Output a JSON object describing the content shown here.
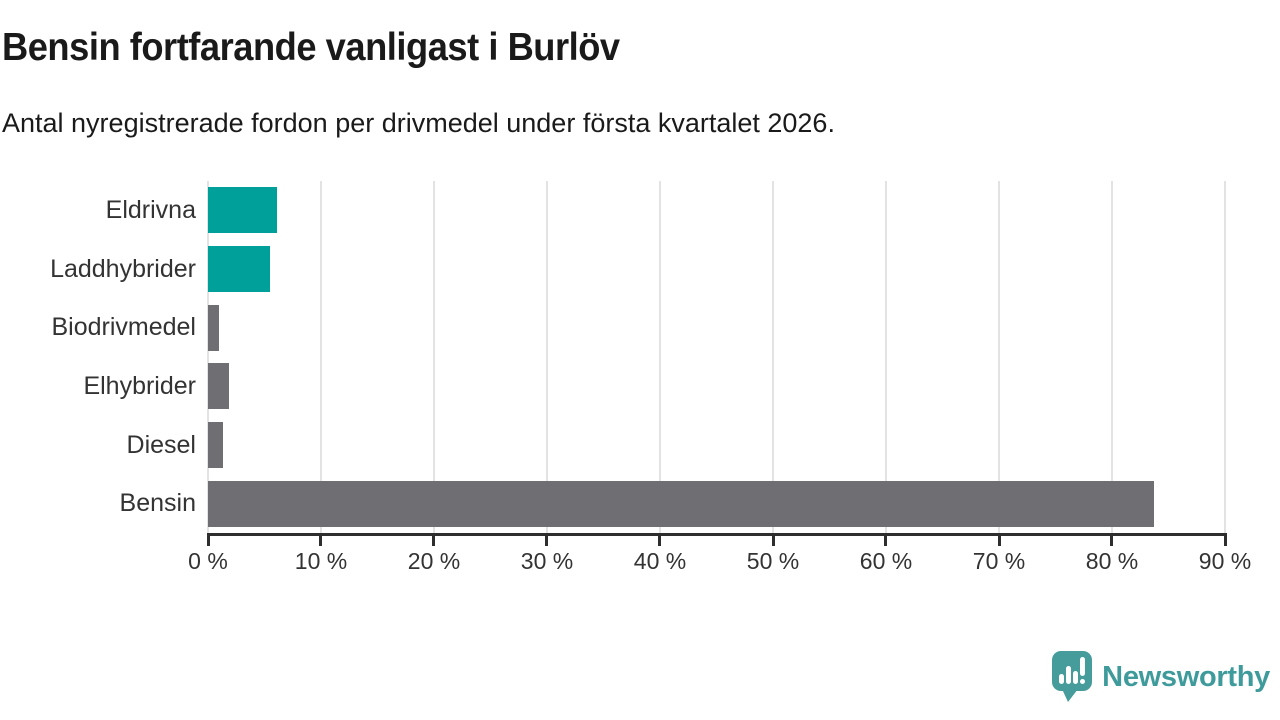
{
  "title": "Bensin fortfarande vanligast i Burlöv",
  "subtitle": "Antal nyregistrerade fordon per drivmedel under första kvartalet 2026.",
  "logo": {
    "text": "Newsworthy",
    "icon": "newsworthy-speech-bubble-chart-icon",
    "color": "#459c9b"
  },
  "colors": {
    "teal_bar": "#00a09a",
    "gray_bar": "#6e6e73",
    "axis": "#2e2e2e",
    "grid": "#e3e3e3",
    "text_dark": "#1a1a1a",
    "text_label": "#333333"
  },
  "chart_data": {
    "type": "bar",
    "orientation": "horizontal",
    "title": "Bensin fortfarande vanligast i Burlöv",
    "subtitle": "Antal nyregistrerade fordon per drivmedel under första kvartalet 2026.",
    "categories": [
      "Eldrivna",
      "Laddhybrider",
      "Biodrivmedel",
      "Elhybrider",
      "Diesel",
      "Bensin"
    ],
    "values": [
      6.1,
      5.5,
      1.0,
      1.9,
      1.3,
      83.7
    ],
    "bar_colors": [
      "#00a09a",
      "#00a09a",
      "#6e6e73",
      "#6e6e73",
      "#6e6e73",
      "#6e6e73"
    ],
    "unit": "%",
    "xlim": [
      0,
      90
    ],
    "x_tick_step": 10,
    "x_tick_labels": [
      "0 %",
      "10 %",
      "20 %",
      "30 %",
      "40 %",
      "50 %",
      "60 %",
      "70 %",
      "80 %",
      "90 %"
    ],
    "grid": true,
    "legend": false
  }
}
